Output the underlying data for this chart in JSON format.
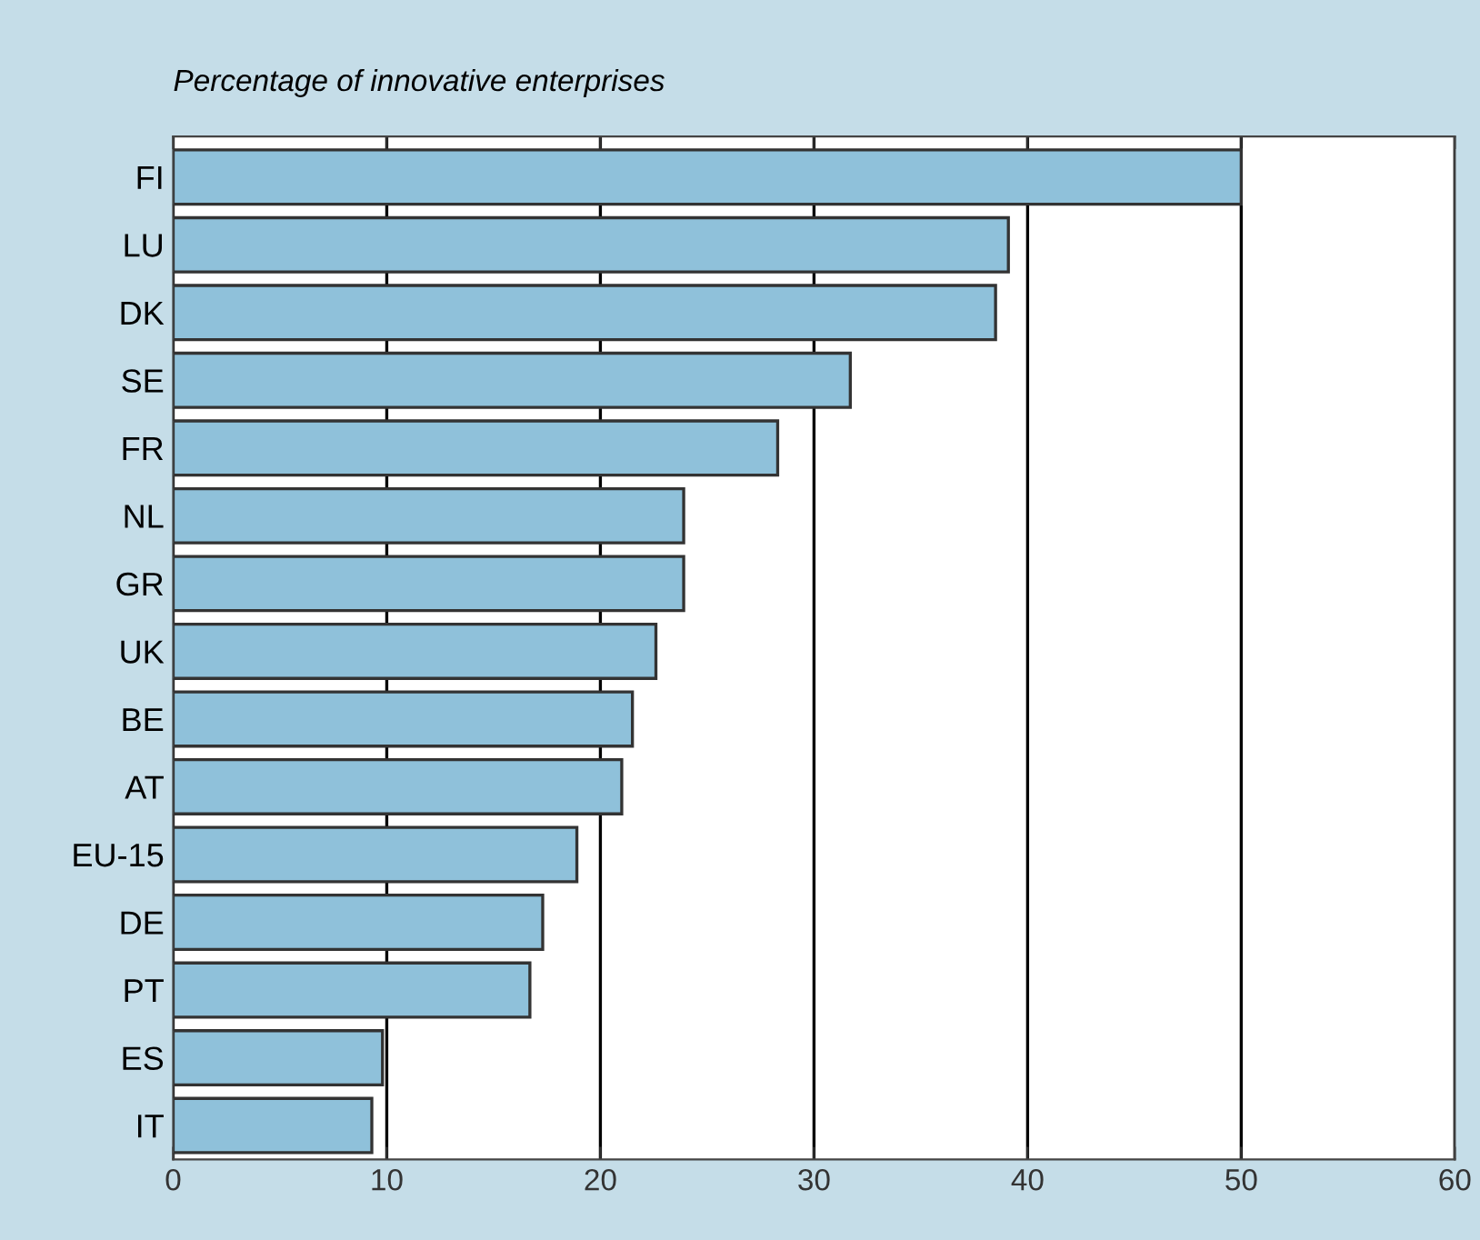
{
  "chart_data": {
    "type": "bar",
    "orientation": "horizontal",
    "title": "Percentage of innovative enterprises",
    "categories": [
      "FI",
      "LU",
      "DK",
      "SE",
      "FR",
      "NL",
      "GR",
      "UK",
      "BE",
      "AT",
      "EU-15",
      "DE",
      "PT",
      "ES",
      "IT"
    ],
    "values": [
      50,
      39.1,
      38.5,
      31.7,
      28.3,
      23.9,
      23.9,
      22.6,
      21.5,
      21.0,
      18.9,
      17.3,
      16.7,
      9.8,
      9.3
    ],
    "color": "#8fc1da",
    "xlim": [
      0,
      60
    ],
    "xticks": [
      0,
      10,
      20,
      30,
      40,
      50,
      60
    ],
    "grid": "x",
    "legend": false
  }
}
